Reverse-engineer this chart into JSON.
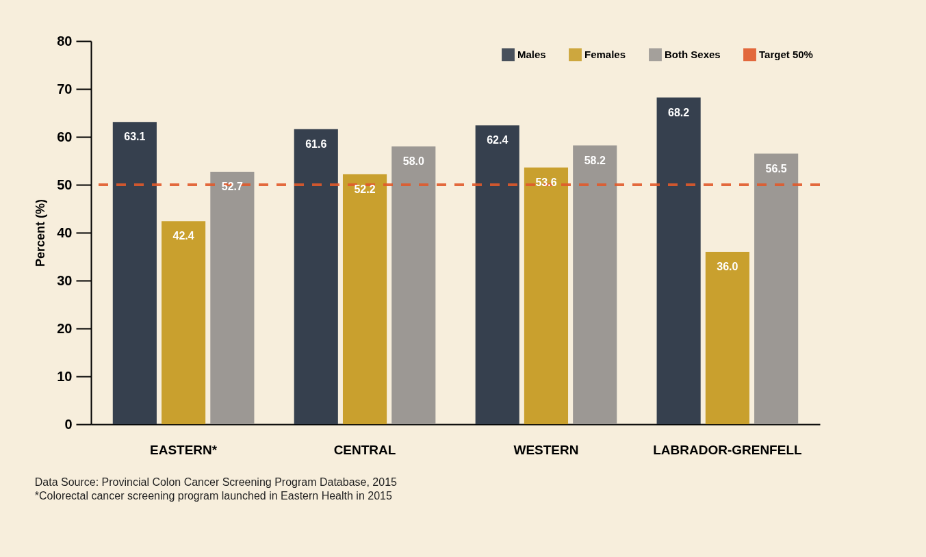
{
  "chart_data": {
    "type": "bar",
    "ylabel": "Percent (%)",
    "categories": [
      "EASTERN*",
      "CENTRAL",
      "WESTERN",
      "LABRADOR-GRENFELL"
    ],
    "series": [
      {
        "name": "Males",
        "color": "#36404e",
        "values": [
          63.1,
          61.6,
          62.4,
          68.2
        ],
        "value_labels": [
          "63.1",
          "61.6",
          "62.4",
          "68.2"
        ]
      },
      {
        "name": "Females",
        "color": "#c9a02e",
        "values": [
          42.4,
          52.2,
          53.6,
          36.0
        ],
        "value_labels": [
          "42.4",
          "52.2",
          "53.6",
          "36.0"
        ]
      },
      {
        "name": "Both Sexes",
        "color": "#9c9894",
        "values": [
          52.7,
          58.0,
          58.2,
          56.5
        ],
        "value_labels": [
          "52.7",
          "58.0",
          "58.2",
          "56.5"
        ]
      }
    ],
    "ylim": [
      0,
      80
    ],
    "yticks": [
      0,
      10,
      20,
      30,
      40,
      50,
      60,
      70,
      80
    ],
    "legend": "top right",
    "ref_lines": [
      {
        "axis": "y",
        "value": 50,
        "label": "Target 50%",
        "color": "#e05a2b",
        "line_style": "dashed"
      }
    ],
    "annotations": [
      "Data Source: Provincial Colon Cancer Screening Program Database, 2015",
      "*Colorectal cancer screening program launched in Eastern Health in 2015"
    ]
  }
}
